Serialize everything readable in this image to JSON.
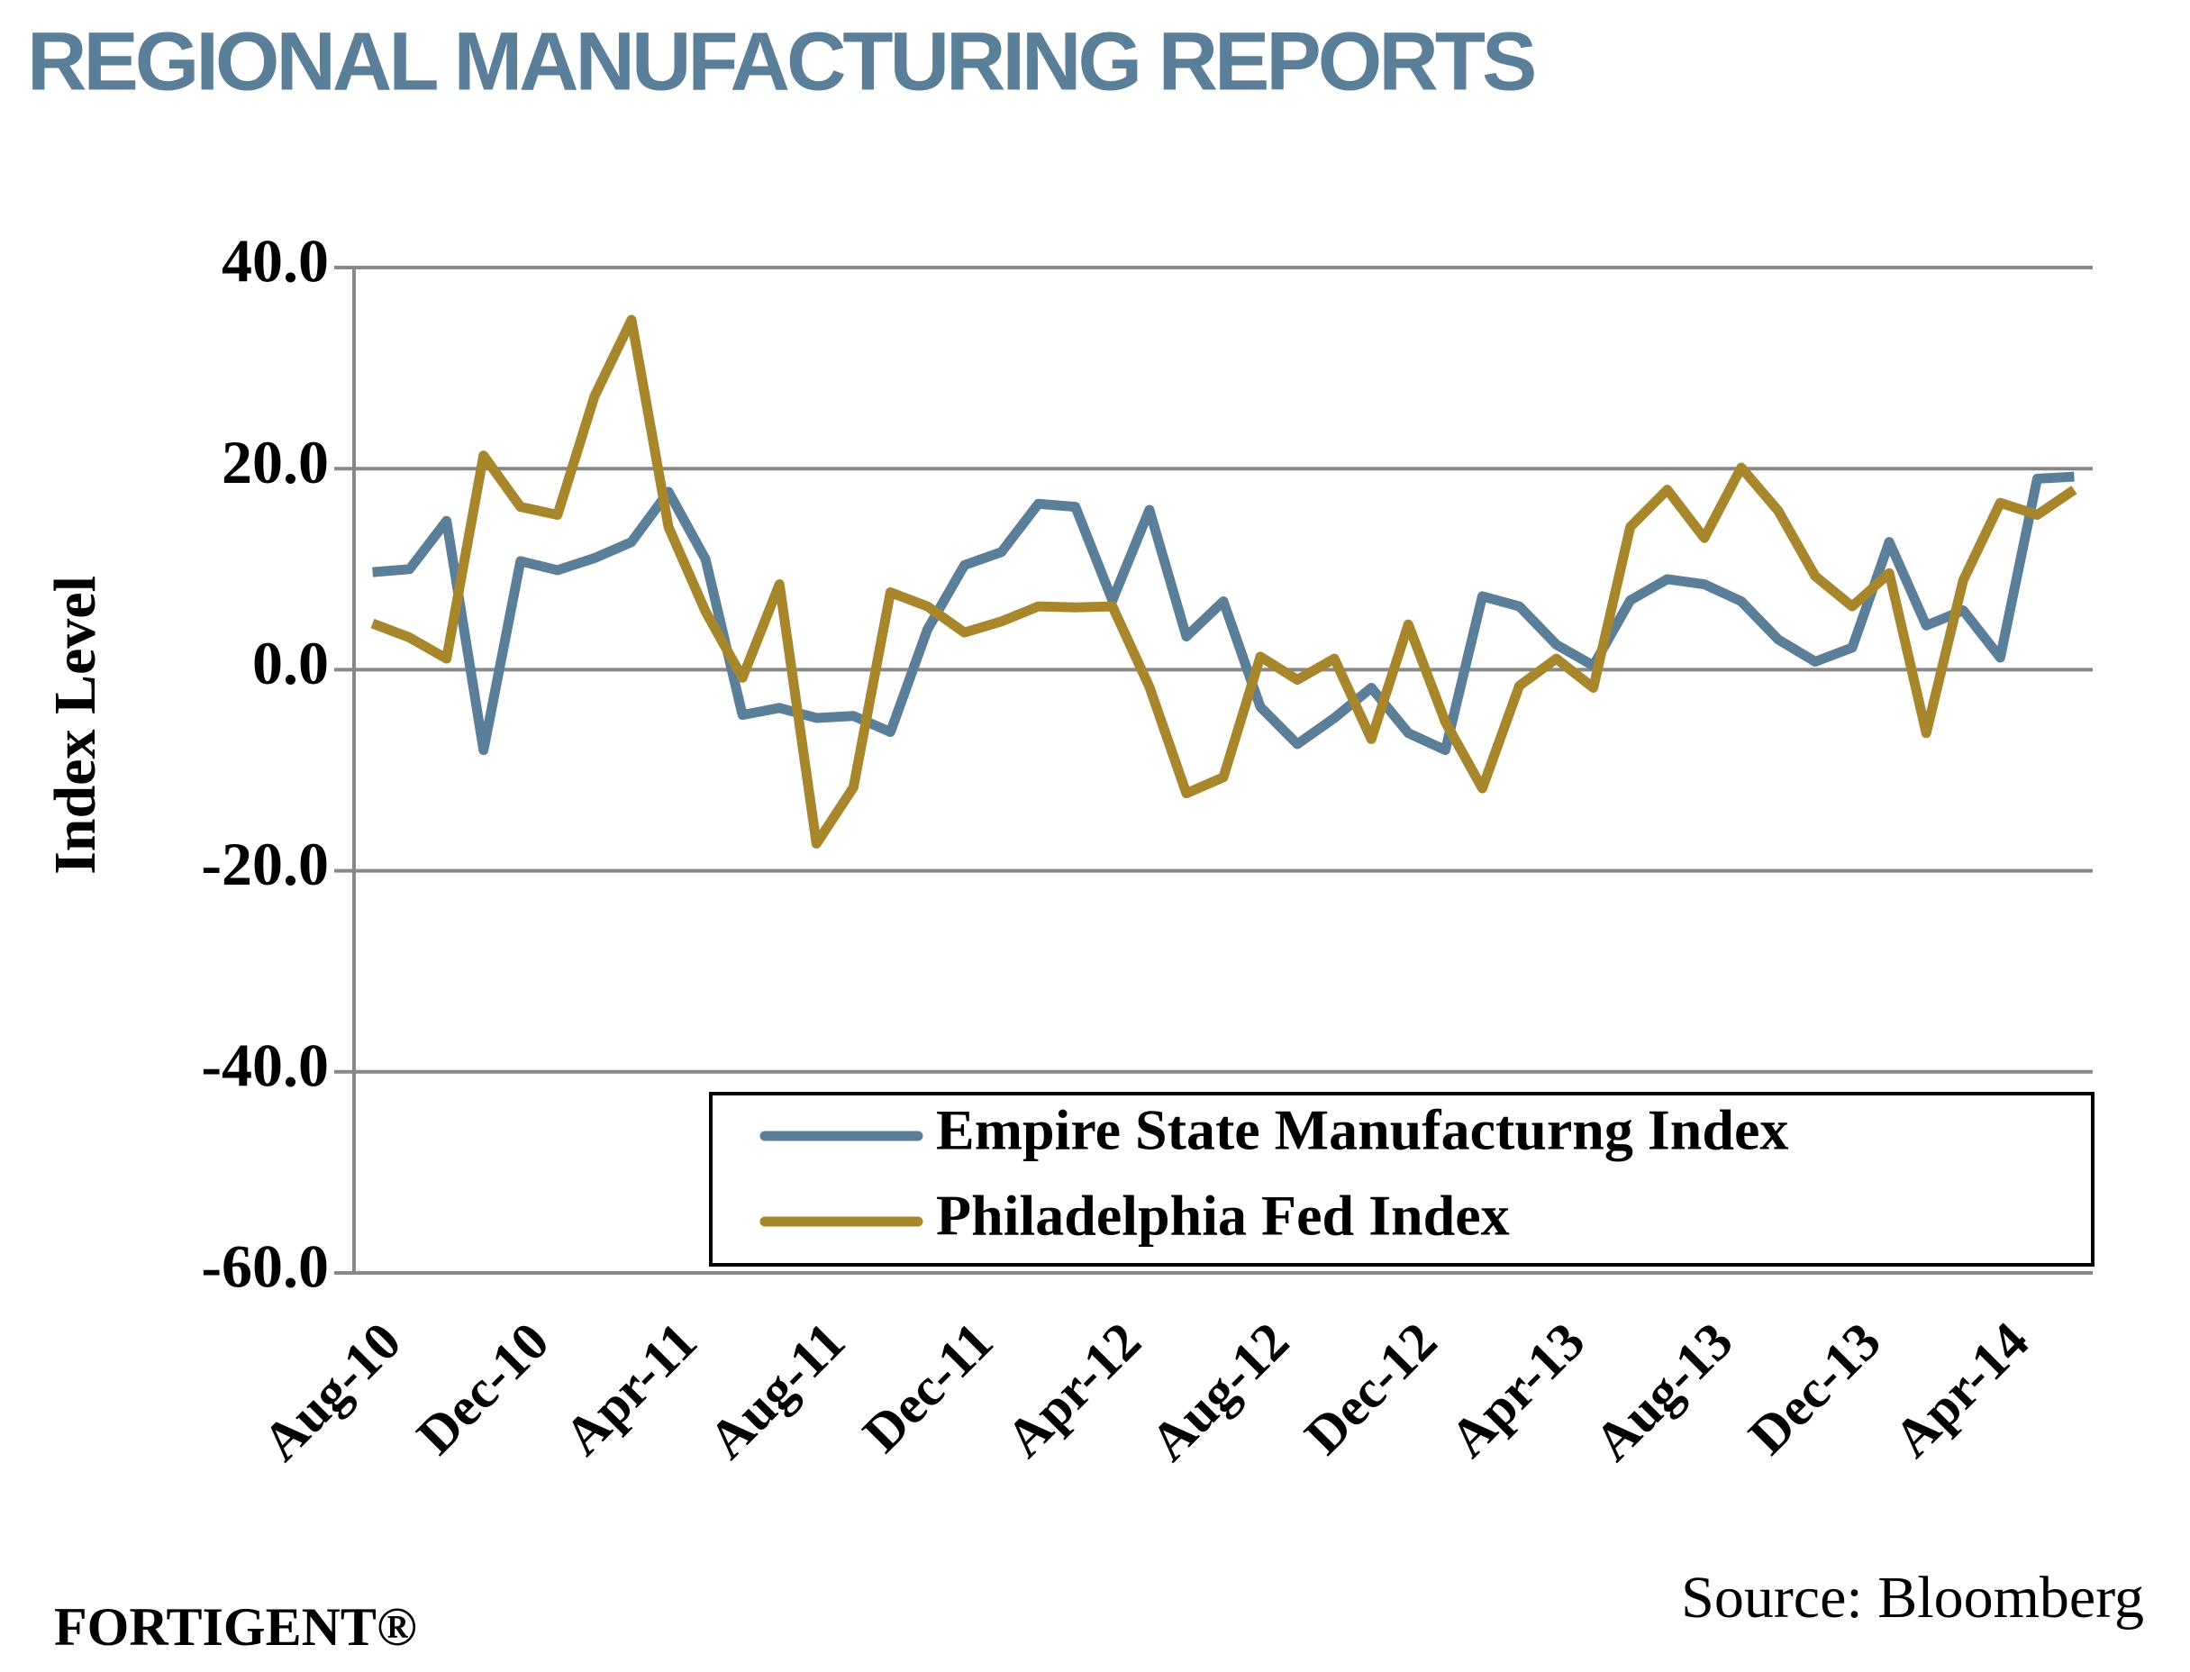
{
  "title": "REGIONAL MANUFACTURING REPORTS",
  "chart_data": {
    "type": "line",
    "y_label": "Index Level",
    "categories": [
      "Aug-10",
      null,
      null,
      null,
      "Dec-10",
      null,
      null,
      null,
      "Apr-11",
      null,
      null,
      null,
      "Aug-11",
      null,
      null,
      null,
      "Dec-11",
      null,
      null,
      null,
      "Apr-12",
      null,
      null,
      null,
      "Aug-12",
      null,
      null,
      null,
      "Dec-12",
      null,
      null,
      null,
      "Apr-13",
      null,
      null,
      null,
      "Aug-13",
      null,
      null,
      null,
      "Dec-13",
      null,
      null,
      null,
      "Apr-14",
      null,
      null
    ],
    "series": [
      {
        "name": "Empire State Manufacturng Index",
        "color": "#5b7f99",
        "values": [
          9.7,
          10.0,
          14.8,
          -8.0,
          10.8,
          9.9,
          11.1,
          12.7,
          17.7,
          11.0,
          -4.5,
          -3.8,
          -4.8,
          -4.6,
          -6.2,
          4.0,
          10.4,
          11.7,
          16.5,
          16.2,
          6.9,
          15.9,
          3.3,
          6.8,
          -3.7,
          -7.4,
          -4.8,
          -1.8,
          -6.3,
          -8.0,
          7.3,
          6.3,
          2.5,
          0.4,
          6.9,
          9.0,
          8.5,
          6.8,
          3.0,
          0.8,
          2.2,
          12.7,
          4.4,
          5.9,
          1.2,
          19.0,
          19.2
        ]
      },
      {
        "name": "Philadelphia Fed Index",
        "color": "#a8862b",
        "values": [
          4.6,
          3.2,
          1.1,
          21.3,
          16.2,
          15.4,
          27.2,
          34.8,
          14.2,
          5.8,
          -0.8,
          8.5,
          -17.3,
          -11.7,
          7.7,
          6.3,
          3.7,
          4.8,
          6.3,
          6.2,
          6.3,
          -1.7,
          -12.3,
          -10.7,
          1.3,
          -1.0,
          1.1,
          -6.9,
          4.5,
          -5.2,
          -11.8,
          -1.6,
          1.1,
          -1.8,
          14.2,
          17.9,
          13.1,
          20.1,
          15.8,
          9.3,
          6.3,
          9.6,
          -6.3,
          8.9,
          16.6,
          15.4,
          17.9
        ]
      }
    ],
    "ylim": [
      -60,
      40
    ],
    "yticks": [
      {
        "value": -60,
        "label": "-60.0"
      },
      {
        "value": -40,
        "label": "-40.0"
      },
      {
        "value": -20,
        "label": "-20.0"
      },
      {
        "value": 0,
        "label": "0.0"
      },
      {
        "value": 20,
        "label": "20.0"
      },
      {
        "value": 40,
        "label": "40.0"
      }
    ],
    "grid": true,
    "legend": "bottom-right"
  },
  "source": "Source: Bloomberg",
  "brand": "FORTIGENT®"
}
